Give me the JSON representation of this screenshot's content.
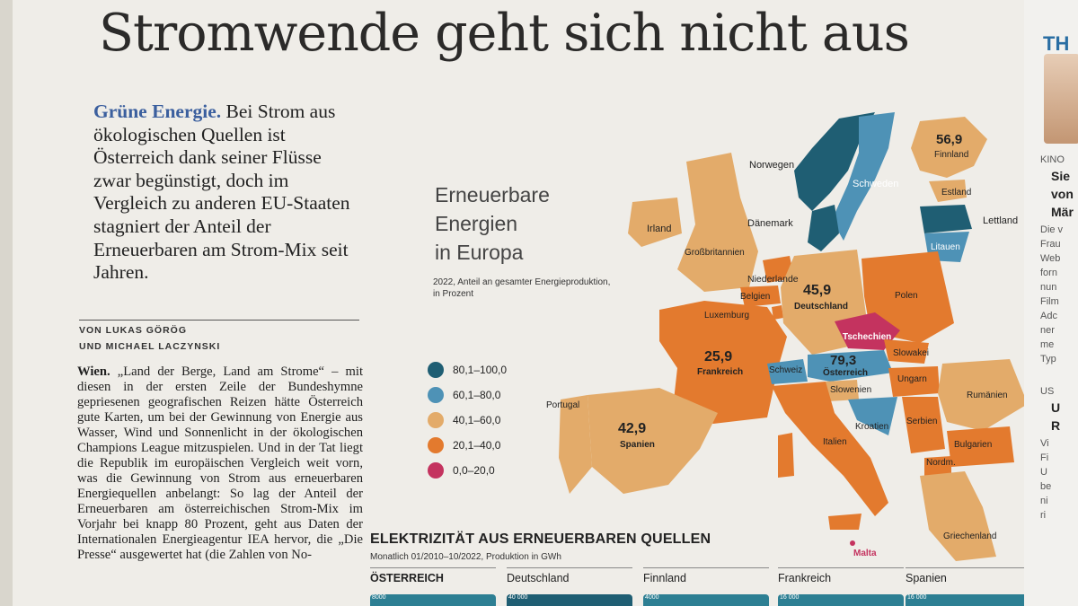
{
  "headline": "Stromwende geht sich nicht aus",
  "intro": {
    "lead": "Grüne Energie.",
    "text": "Bei Strom aus ökologischen Quellen ist Österreich dank seiner Flüsse zwar begünstigt, doch im Vergleich zu anderen EU-Staaten stagniert der Anteil der Erneuerbaren am Strom-Mix seit Jahren."
  },
  "byline": {
    "line1": "VON LUKAS GÖRÖG",
    "line2": "UND MICHAEL LACZYNSKI"
  },
  "body": {
    "place": "Wien.",
    "text": "„Land der Berge, Land am Strome“ – mit diesen in der ersten Zeile der Bundeshymne gepriesenen geografischen Reizen hätte Österreich gute Karten, um bei der Gewinnung von Energie aus Wasser, Wind und Sonnenlicht in der ökologischen Champions League mitzuspielen. Und in der Tat liegt die Republik im europäischen Vergleich weit vorn, was die Gewinnung von Strom aus erneuerbaren Energiequellen anbelangt: So lag der Anteil der Erneuerbaren am österreichischen Strom-Mix im Vorjahr bei knapp 80 Prozent, geht aus Daten der Internationalen Energieagentur IEA hervor, die „Die Presse“ ausgewertet hat (die Zahlen von No-"
  },
  "map": {
    "title_line1": "Erneuerbare",
    "title_line2": "Energien",
    "title_line3": "in Europa",
    "subtitle_line1": "2022, Anteil an gesamter Energieproduktion,",
    "subtitle_line2": "in Prozent",
    "legend": [
      {
        "label": "80,1–100,0",
        "color": "#1f5e73"
      },
      {
        "label": "60,1–80,0",
        "color": "#4e92b6"
      },
      {
        "label": "40,1–60,0",
        "color": "#e3ab6a"
      },
      {
        "label": "20,1–40,0",
        "color": "#e37a2e"
      },
      {
        "label": "0,0–20,0",
        "color": "#c4335f"
      }
    ],
    "countries": {
      "norwegen": "Norwegen",
      "schweden": "Schweden",
      "finnland": "Finnland",
      "estland": "Estland",
      "lettland": "Lettland",
      "litauen": "Litauen",
      "daenemark": "Dänemark",
      "irland": "Irland",
      "grossbritannien": "Großbritannien",
      "niederlande": "Niederlande",
      "belgien": "Belgien",
      "luxemburg": "Luxemburg",
      "deutschland": "Deutschland",
      "polen": "Polen",
      "tschechien": "Tschechien",
      "slowakei": "Slowakei",
      "frankreich": "Frankreich",
      "schweiz": "Schweiz",
      "oesterreich": "Österreich",
      "ungarn": "Ungarn",
      "slowenien": "Slowenien",
      "rumaenien": "Rumänien",
      "kroatien": "Kroatien",
      "serbien": "Serbien",
      "bulgarien": "Bulgarien",
      "portugal": "Portugal",
      "spanien": "Spanien",
      "italien": "Italien",
      "nordm": "Nordm.",
      "griechenland": "Griechenland",
      "malta": "Malta"
    },
    "values": {
      "finnland": "56,9",
      "deutschland": "45,9",
      "frankreich": "25,9",
      "oesterreich": "79,3",
      "spanien": "42,9"
    }
  },
  "electricity": {
    "title": "ELEKTRIZITÄT AUS ERNEUERBAREN QUELLEN",
    "subtitle": "Monatlich 01/2010–10/2022, Produktion in GWh",
    "panels": [
      {
        "label": "ÖSTERREICH",
        "tick": "8000"
      },
      {
        "label": "Deutschland",
        "tick": "40 000"
      },
      {
        "label": "Finnland",
        "tick": "4000"
      },
      {
        "label": "Frankreich",
        "tick": "16 000"
      },
      {
        "label": "Spanien",
        "tick": "16 000"
      }
    ]
  },
  "right_column": {
    "header": "TH",
    "kino": "KINO",
    "lines": [
      "Sie",
      "von",
      "Mär"
    ],
    "small": [
      "Die v",
      "Frau",
      "Web",
      "forn",
      "nun",
      "Film",
      "Adc",
      "ner",
      "me",
      "Typ"
    ],
    "us": "US",
    "u_lines": [
      "U",
      "R"
    ],
    "small2": [
      "Vi",
      "Fi",
      "U",
      "be",
      "ni",
      "ri"
    ]
  }
}
